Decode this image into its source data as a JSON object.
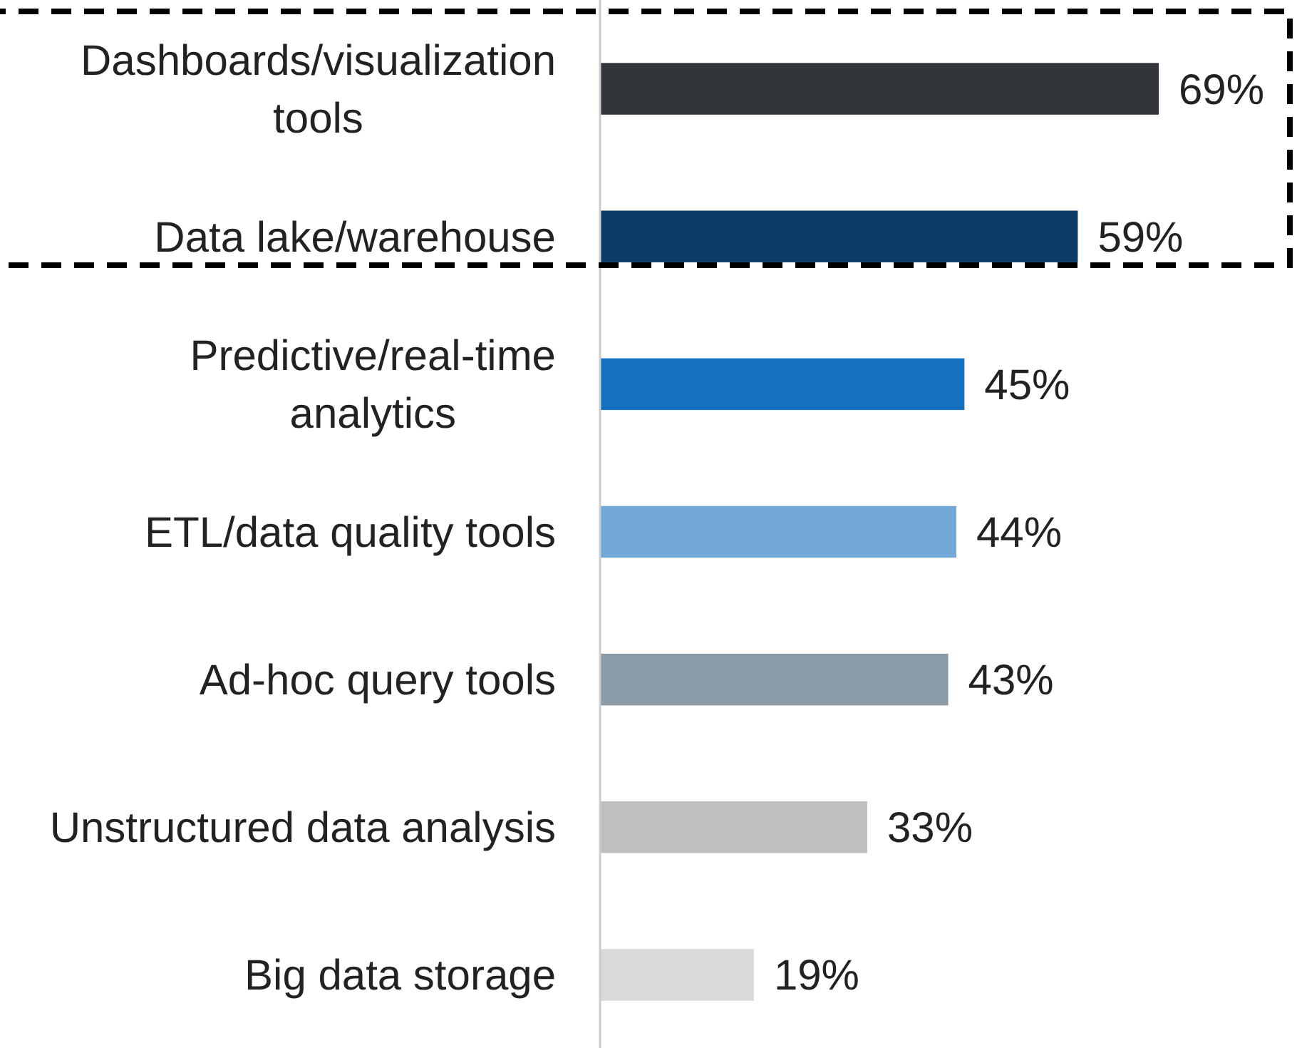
{
  "chart_data": {
    "type": "bar",
    "orientation": "horizontal",
    "categories": [
      "Dashboards/visualization tools",
      "Data lake/warehouse",
      "Predictive/real-time analytics",
      "ETL/data quality tools",
      "Ad-hoc query tools",
      "Unstructured data analysis",
      "Big data storage"
    ],
    "values": [
      69,
      59,
      45,
      44,
      43,
      33,
      19
    ],
    "colors": [
      "#32363b",
      "#0c3c66",
      "#1470c0",
      "#72a8d8",
      "#8a9aa6",
      "#bfbfbf",
      "#d9d9d9"
    ],
    "value_labels": [
      "69%",
      "59%",
      "45%",
      "44%",
      "43%",
      "33%",
      "19%"
    ]
  }
}
